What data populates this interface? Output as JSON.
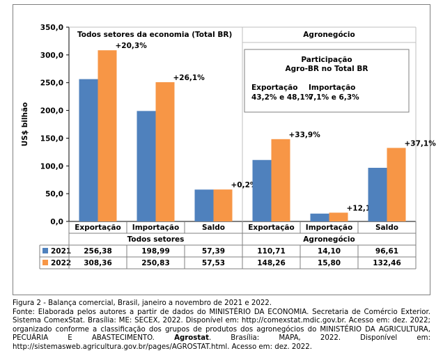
{
  "chart_data": {
    "type": "bar",
    "ylabel": "US$ bilhão",
    "ylim": [
      0,
      350
    ],
    "yticks": [
      "0,0",
      "50,0",
      "100,0",
      "150,0",
      "200,0",
      "250,0",
      "300,0",
      "350,0"
    ],
    "categories": [
      "Exportação",
      "Importação",
      "Saldo",
      "Exportação",
      "Importação",
      "Saldo"
    ],
    "groups": [
      "Todos setores",
      "Agronegócio"
    ],
    "panel_titles": [
      "Todos setores da economia (Total BR)",
      "Agronegócio"
    ],
    "series": [
      {
        "name": "2021",
        "values": [
          256.38,
          198.99,
          57.39,
          110.71,
          14.1,
          96.61
        ],
        "labels": [
          "256,38",
          "198,99",
          "57,39",
          "110,71",
          "14,10",
          "96,61"
        ],
        "color": "#4f81bd"
      },
      {
        "name": "2022",
        "values": [
          308.36,
          250.83,
          57.53,
          148.26,
          15.8,
          132.46
        ],
        "labels": [
          "308,36",
          "250,83",
          "57,53",
          "148,26",
          "15,80",
          "132,46"
        ],
        "color": "#f79646"
      }
    ],
    "annotations": [
      "+20,3%",
      "+26,1%",
      "+0,2%",
      "+33,9%",
      "+12,1%",
      "+37,1%"
    ],
    "info_box": {
      "title_line1": "Participação",
      "title_line2": "Agro-BR  no Total BR",
      "col1_head": "Exportação",
      "col1_val": "43,2% e 48,1%",
      "col2_head": "Importação",
      "col2_val": "7,1% e 6,3%"
    }
  },
  "caption": {
    "line1": "Figura 2 - Balança comercial, Brasil, janeiro a novembro de 2021 e 2022.",
    "line2_pre": "Fonte: Elaborada pelos autores a partir de dados do MINISTÉRIO DA ECONOMIA. Secretaria de Comércio Exterior. Sistema ComexStat. Brasília: ME: SECEX, 2022. Disponível em: http://comexstat.mdic.gov.br. Acesso em: dez. 2022; organizado conforme a classificação dos grupos de produtos dos agronegócios do MINISTÉRIO DA AGRICULTURA, PECUÁRIA E ABASTECIMENTO.",
    "line2_bold": "Agrostat",
    "line2_post": ". Brasília: MAPA, 2022. Disponível em: http://sistemasweb.agricultura.gov.br/pages/AGROSTAT.html. Acesso em: dez. 2022."
  }
}
